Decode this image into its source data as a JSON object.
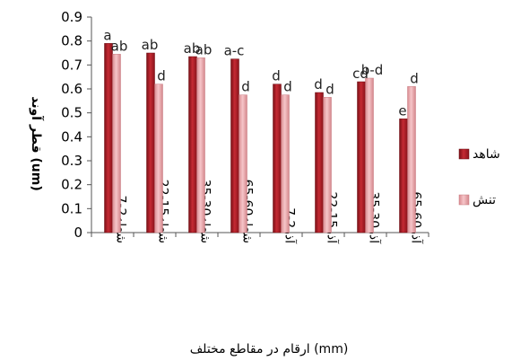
{
  "chart_data": {
    "type": "bar",
    "ylabel": "قطر آوند (um)",
    "xlabel": "ارقام در مقاطع مختلف (mm)",
    "ylim": [
      0,
      0.9
    ],
    "yticks": [
      "0",
      "0.1",
      "0.2",
      "0.3",
      "0.4",
      "0.5",
      "0.6",
      "0.7",
      "0.8",
      "0.9"
    ],
    "grid": false,
    "legend_position": "right",
    "categories": [
      "شعله2-7",
      "شعله15-22",
      "شعله30-35",
      "شعله60-65",
      "آذر2-7",
      "آذر15-22",
      "آذر30-35",
      "آذر60-65"
    ],
    "series": [
      {
        "name": "شاهد",
        "color": "#b0202a",
        "values": [
          0.79,
          0.75,
          0.735,
          0.725,
          0.62,
          0.585,
          0.63,
          0.475
        ],
        "labels": [
          "a",
          "ab",
          "ab",
          "a-c",
          "d",
          "d",
          "cd",
          "e"
        ]
      },
      {
        "name": "تنش",
        "color": "#e8a0a4",
        "values": [
          0.745,
          0.62,
          0.73,
          0.575,
          0.575,
          0.565,
          0.645,
          0.61
        ],
        "labels": [
          "ab",
          "d",
          "ab",
          "d",
          "d",
          "d",
          "b-d",
          "d"
        ]
      }
    ]
  }
}
